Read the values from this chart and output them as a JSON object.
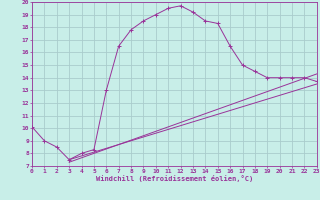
{
  "xlabel": "Windchill (Refroidissement éolien,°C)",
  "bg_color": "#c8eee8",
  "grid_color": "#aacccc",
  "line_color": "#993399",
  "xmin": 0,
  "xmax": 23,
  "ymin": 7,
  "ymax": 20,
  "main_x": [
    0,
    1,
    2,
    3,
    4,
    5,
    6,
    7,
    8,
    9,
    10,
    11,
    12,
    13,
    14,
    15,
    16,
    17,
    18,
    19,
    20,
    21,
    22,
    23
  ],
  "main_y": [
    10.1,
    9.0,
    8.5,
    7.5,
    8.0,
    8.3,
    13.0,
    16.5,
    17.8,
    18.5,
    19.0,
    19.5,
    19.7,
    19.2,
    18.5,
    18.3,
    16.5,
    15.0,
    14.5,
    14.0,
    14.0,
    14.0,
    14.0,
    13.7
  ],
  "line1_x": [
    3,
    23
  ],
  "line1_y": [
    7.5,
    13.5
  ],
  "line2_x": [
    3,
    23
  ],
  "line2_y": [
    7.3,
    14.3
  ],
  "xticks": [
    0,
    1,
    2,
    3,
    4,
    5,
    6,
    7,
    8,
    9,
    10,
    11,
    12,
    13,
    14,
    15,
    16,
    17,
    18,
    19,
    20,
    21,
    22,
    23
  ],
  "yticks": [
    7,
    8,
    9,
    10,
    11,
    12,
    13,
    14,
    15,
    16,
    17,
    18,
    19,
    20
  ]
}
